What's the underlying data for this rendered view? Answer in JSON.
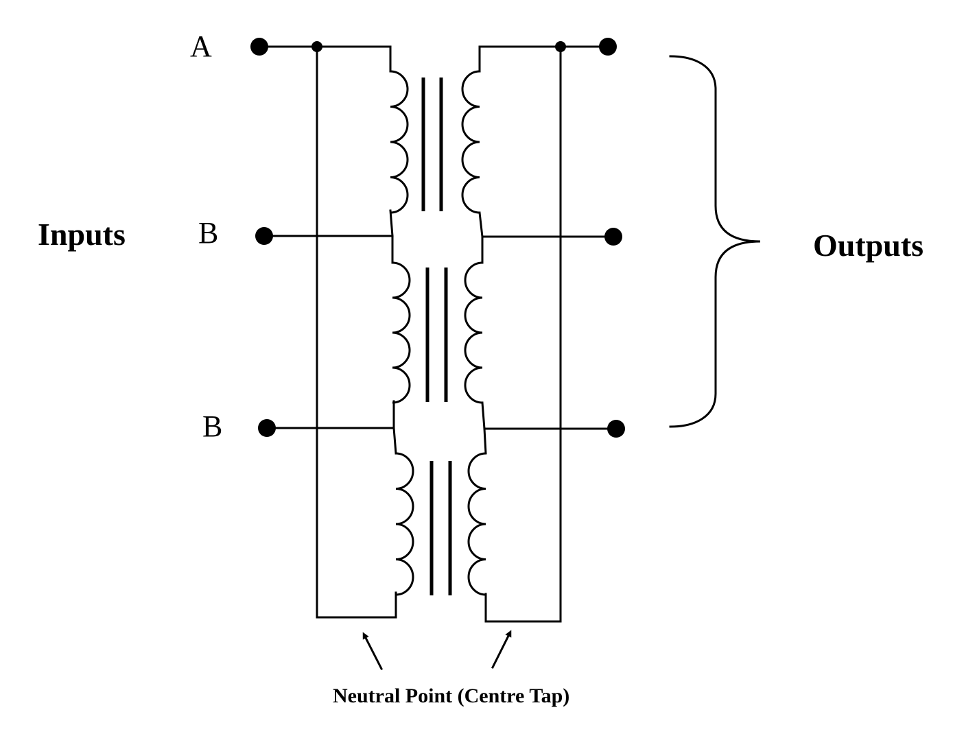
{
  "labels": {
    "inputs": "Inputs",
    "outputs": "Outputs",
    "terminal_a": "A",
    "terminal_b1": "B",
    "terminal_b2": "B",
    "neutral_point": "Neutral Point (Centre Tap)"
  },
  "diagram": {
    "stages": 3,
    "primary_turns_per_stage": 4,
    "secondary_turns_per_stage": 4,
    "color": "#000000"
  }
}
